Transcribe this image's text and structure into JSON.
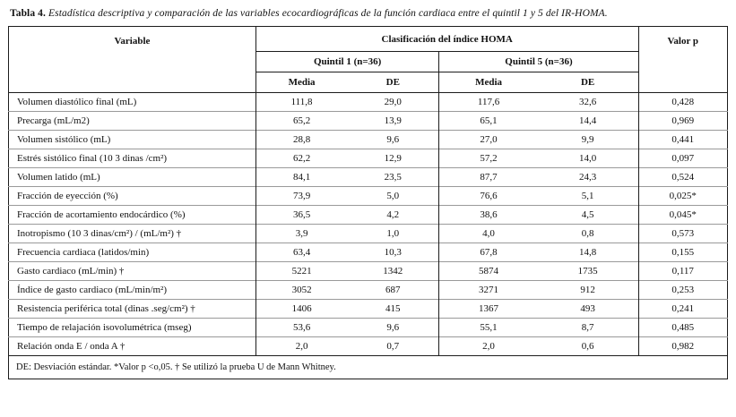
{
  "title": {
    "label": "Tabla 4.",
    "text": "Estadística descriptiva y comparación de las variables ecocardiográficas de la función cardiaca entre el quintil 1 y 5 del IR-HOMA."
  },
  "table": {
    "header": {
      "variable": "Variable",
      "group": "Clasificación del índice HOMA",
      "quintil1": "Quintil 1 (n=36)",
      "quintil5": "Quintil 5 (n=36)",
      "media": "Media",
      "de": "DE",
      "valor_p": "Valor p"
    },
    "rows": [
      {
        "variable": "Volumen diastólico final (mL)",
        "q1_media": "111,8",
        "q1_de": "29,0",
        "q5_media": "117,6",
        "q5_de": "32,6",
        "p": "0,428"
      },
      {
        "variable": "Precarga (mL/m2)",
        "q1_media": "65,2",
        "q1_de": "13,9",
        "q5_media": "65,1",
        "q5_de": "14,4",
        "p": "0,969"
      },
      {
        "variable": "Volumen sistólico (mL)",
        "q1_media": "28,8",
        "q1_de": "9,6",
        "q5_media": "27,0",
        "q5_de": "9,9",
        "p": "0,441"
      },
      {
        "variable": "Estrés sistólico final (10 3 dinas /cm²)",
        "q1_media": "62,2",
        "q1_de": "12,9",
        "q5_media": "57,2",
        "q5_de": "14,0",
        "p": "0,097"
      },
      {
        "variable": "Volumen latido (mL)",
        "q1_media": "84,1",
        "q1_de": "23,5",
        "q5_media": "87,7",
        "q5_de": "24,3",
        "p": "0,524"
      },
      {
        "variable": "Fracción de eyección (%)",
        "q1_media": "73,9",
        "q1_de": "5,0",
        "q5_media": "76,6",
        "q5_de": "5,1",
        "p": "0,025*"
      },
      {
        "variable": "Fracción de acortamiento  endocárdico (%)",
        "q1_media": "36,5",
        "q1_de": "4,2",
        "q5_media": "38,6",
        "q5_de": "4,5",
        "p": "0,045*"
      },
      {
        "variable": "Inotropismo (10 3 dinas/cm²) / (mL/m²) †",
        "q1_media": "3,9",
        "q1_de": "1,0",
        "q5_media": "4,0",
        "q5_de": "0,8",
        "p": "0,573"
      },
      {
        "variable": "Frecuencia cardiaca (latidos/min)",
        "q1_media": "63,4",
        "q1_de": "10,3",
        "q5_media": "67,8",
        "q5_de": "14,8",
        "p": "0,155"
      },
      {
        "variable": "Gasto cardiaco (mL/min) †",
        "q1_media": "5221",
        "q1_de": "1342",
        "q5_media": "5874",
        "q5_de": "1735",
        "p": "0,117"
      },
      {
        "variable": "Índice de gasto cardiaco (mL/min/m²)",
        "q1_media": "3052",
        "q1_de": "687",
        "q5_media": "3271",
        "q5_de": "912",
        "p": "0,253"
      },
      {
        "variable": "Resistencia periférica total (dinas .seg/cm²) †",
        "q1_media": "1406",
        "q1_de": "415",
        "q5_media": "1367",
        "q5_de": "493",
        "p": "0,241"
      },
      {
        "variable": "Tiempo de relajación isovolumétrica (mseg)",
        "q1_media": "53,6",
        "q1_de": "9,6",
        "q5_media": "55,1",
        "q5_de": "8,7",
        "p": "0,485"
      },
      {
        "variable": "Relación onda E / onda A †",
        "q1_media": "2,0",
        "q1_de": "0,7",
        "q5_media": "2,0",
        "q5_de": "0,6",
        "p": "0,982"
      }
    ],
    "footnote": "DE: Desviación estándar. *Valor p <o,05. † Se utilizó la prueba U de Mann Whitney."
  }
}
